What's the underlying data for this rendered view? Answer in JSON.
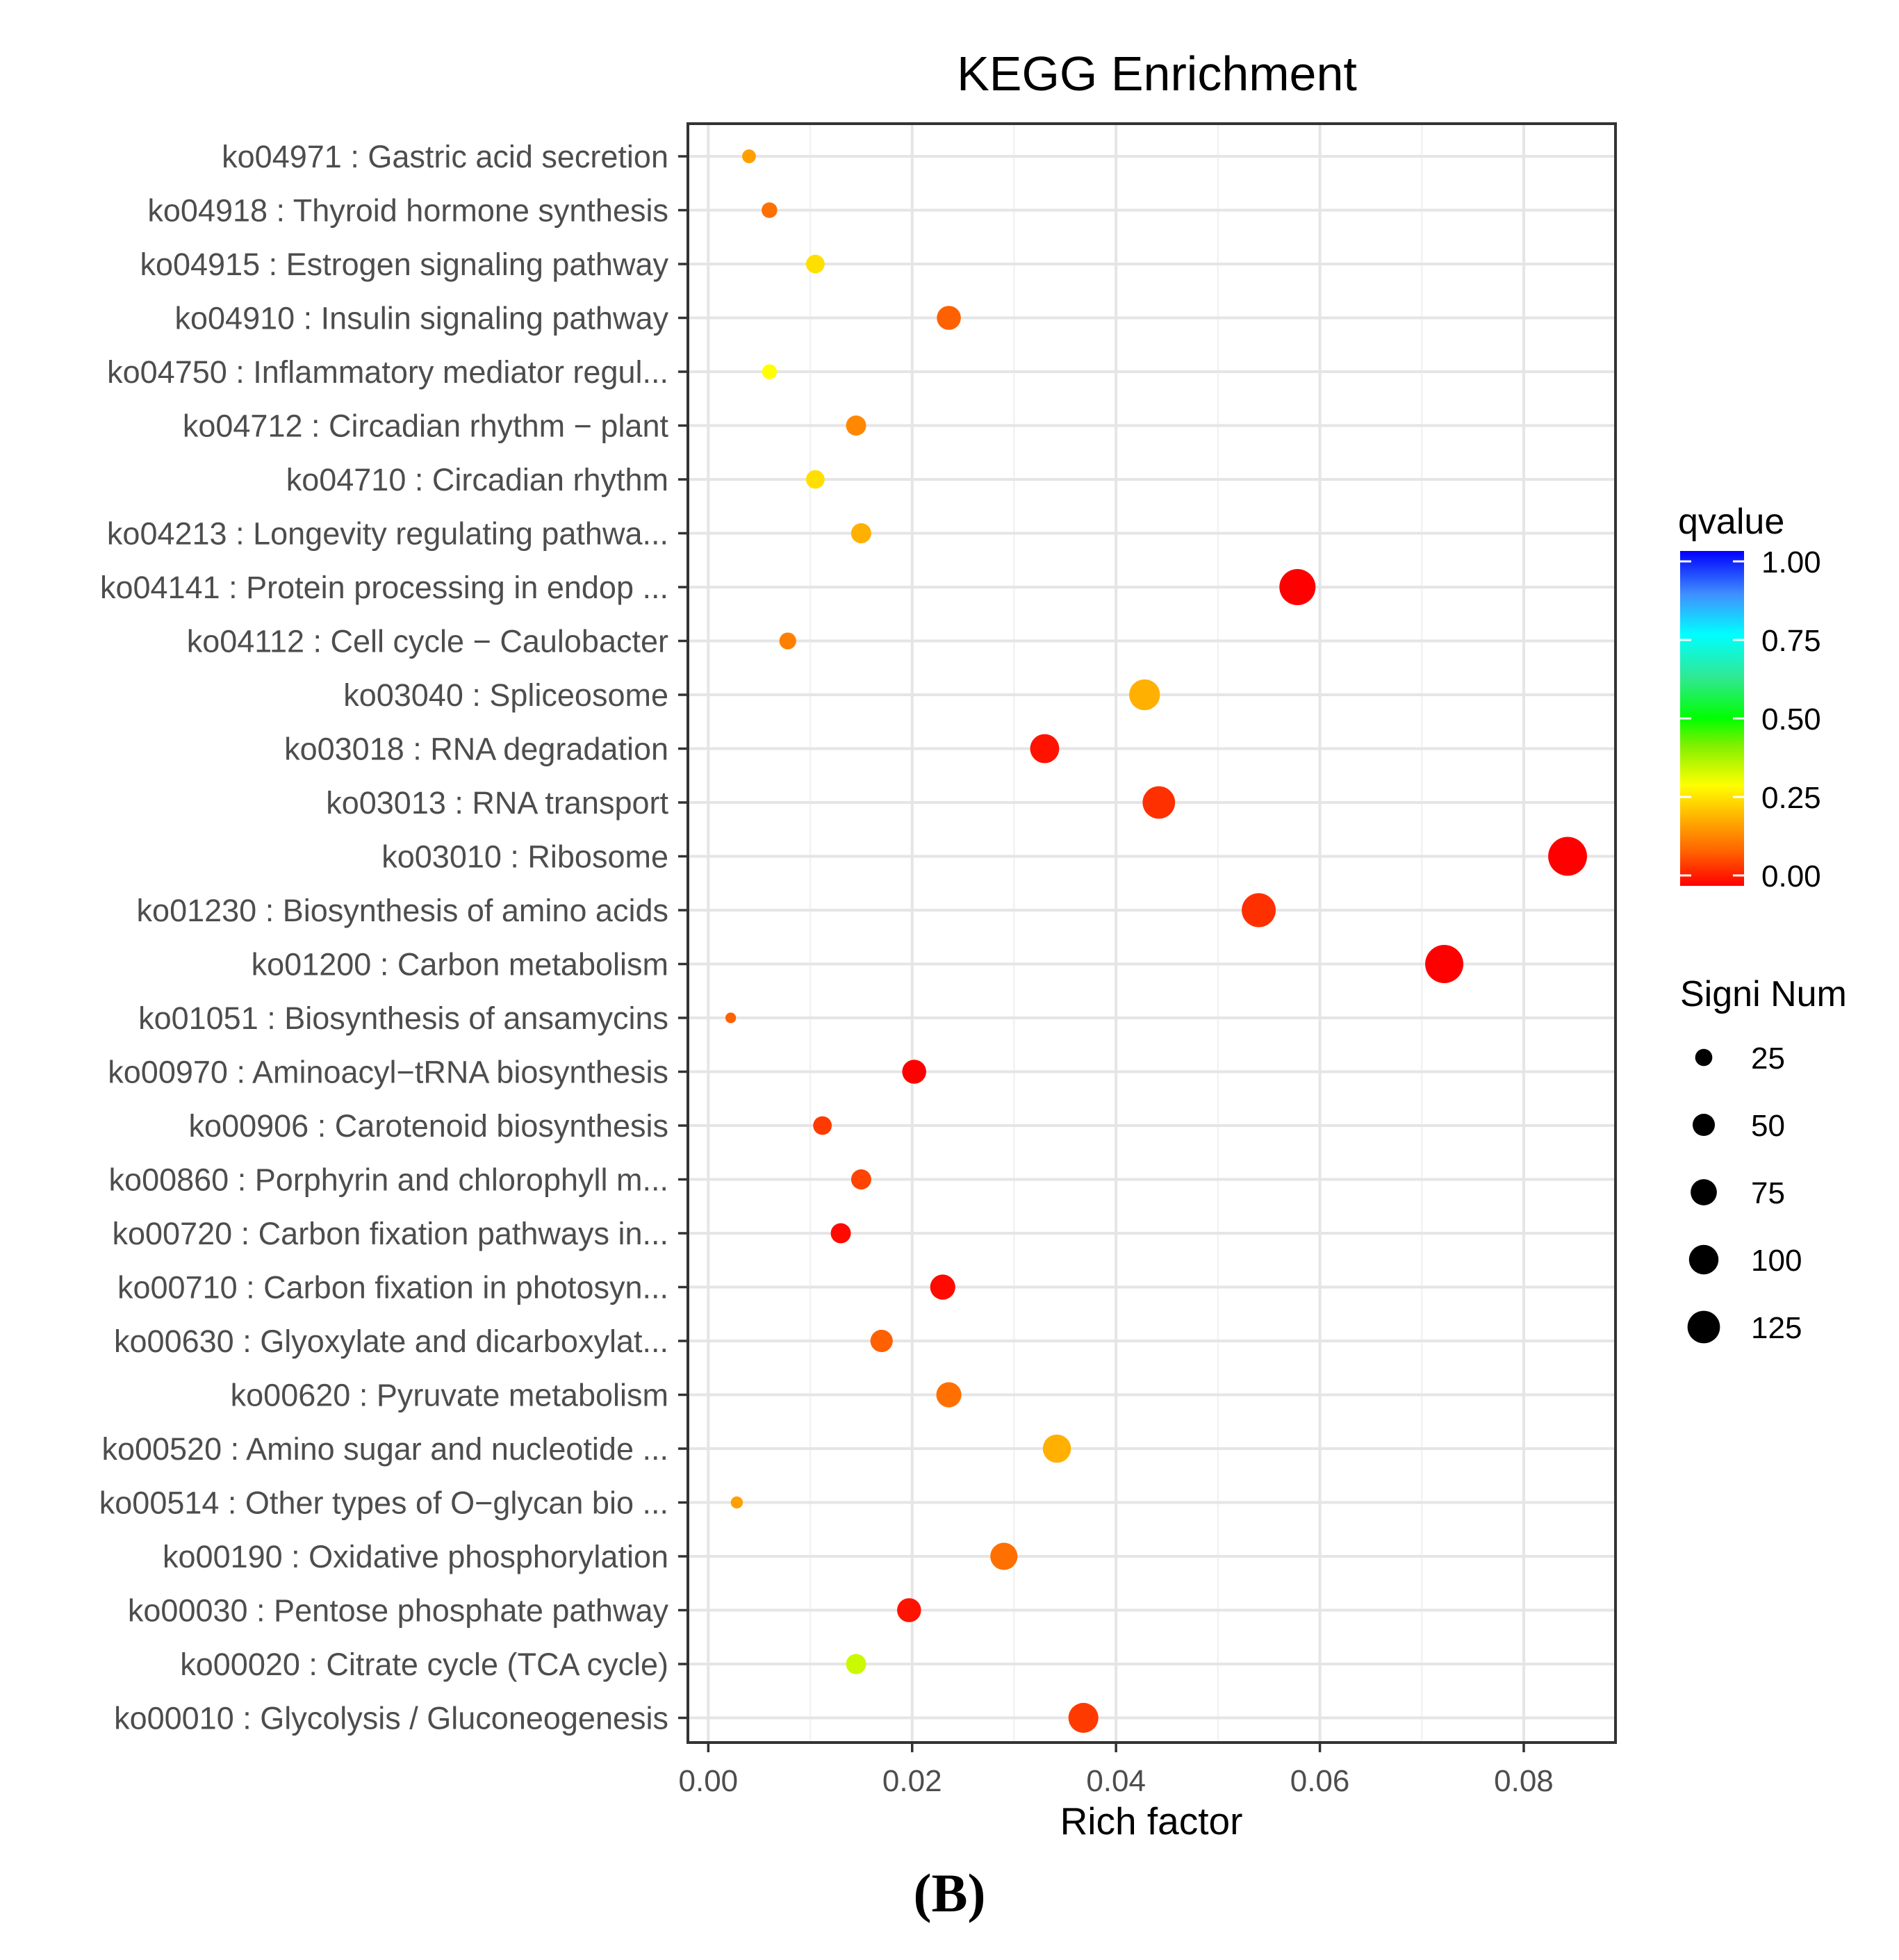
{
  "chart_data": {
    "type": "scatter",
    "title": "KEGG Enrichment",
    "xlabel": "Rich factor",
    "ylabel": "",
    "xlim": [
      -0.002,
      0.089
    ],
    "xticks": [
      0.0,
      0.02,
      0.04,
      0.06,
      0.08
    ],
    "xtick_labels": [
      "0.00",
      "0.02",
      "0.04",
      "0.06",
      "0.08"
    ],
    "grid": true,
    "color_scale": {
      "title": "qvalue",
      "ticks": [
        1.0,
        0.75,
        0.5,
        0.25,
        0.0
      ],
      "tick_labels": [
        "1.00",
        "0.75",
        "0.50",
        "0.25",
        "0.00"
      ]
    },
    "size_legend": {
      "title": "Signi Num",
      "values": [
        25,
        50,
        75,
        100,
        125
      ],
      "labels": [
        "25",
        "50",
        "75",
        "100",
        "125"
      ]
    },
    "legend_position": "right",
    "categories": [
      "ko04971 : Gastric acid secretion",
      "ko04918 : Thyroid hormone synthesis",
      "ko04915 : Estrogen signaling pathway",
      "ko04910 : Insulin signaling pathway",
      "ko04750 : Inflammatory mediator regul...",
      "ko04712 : Circadian rhythm − plant",
      "ko04710 : Circadian rhythm",
      "ko04213 : Longevity regulating pathwa...",
      "ko04141 : Protein processing in endop ...",
      "ko04112 : Cell cycle − Caulobacter",
      "ko03040 : Spliceosome",
      "ko03018 : RNA degradation",
      "ko03013 : RNA transport",
      "ko03010 : Ribosome",
      "ko01230 : Biosynthesis of amino acids",
      "ko01200 : Carbon metabolism",
      "ko01051 : Biosynthesis of ansamycins",
      "ko00970 : Aminoacyl−tRNA biosynthesis",
      "ko00906 : Carotenoid biosynthesis",
      "ko00860 : Porphyrin and chlorophyll m...",
      "ko00720 : Carbon fixation pathways in...",
      "ko00710 : Carbon fixation in photosyn...",
      "ko00630 : Glyoxylate and dicarboxylat...",
      "ko00620 : Pyruvate metabolism",
      "ko00520 : Amino sugar and nucleotide ...",
      "ko00514 : Other types of O−glycan bio ...",
      "ko00190 : Oxidative phosphorylation",
      "ko00030 : Pentose phosphate pathway",
      "ko00020 : Citrate cycle (TCA cycle)",
      "ko00010 : Glycolysis / Gluconeogenesis"
    ],
    "points": [
      {
        "rich_factor": 0.004,
        "qvalue": 0.18,
        "signi_num": 8
      },
      {
        "rich_factor": 0.006,
        "qvalue": 0.12,
        "signi_num": 12
      },
      {
        "rich_factor": 0.0105,
        "qvalue": 0.26,
        "signi_num": 20
      },
      {
        "rich_factor": 0.0236,
        "qvalue": 0.1,
        "signi_num": 40
      },
      {
        "rich_factor": 0.006,
        "qvalue": 0.3,
        "signi_num": 10
      },
      {
        "rich_factor": 0.0145,
        "qvalue": 0.15,
        "signi_num": 25
      },
      {
        "rich_factor": 0.0105,
        "qvalue": 0.26,
        "signi_num": 20
      },
      {
        "rich_factor": 0.015,
        "qvalue": 0.2,
        "signi_num": 25
      },
      {
        "rich_factor": 0.0578,
        "qvalue": 0.0,
        "signi_num": 110
      },
      {
        "rich_factor": 0.0078,
        "qvalue": 0.14,
        "signi_num": 15
      },
      {
        "rich_factor": 0.0428,
        "qvalue": 0.2,
        "signi_num": 75
      },
      {
        "rich_factor": 0.033,
        "qvalue": 0.02,
        "signi_num": 65
      },
      {
        "rich_factor": 0.0442,
        "qvalue": 0.05,
        "signi_num": 85
      },
      {
        "rich_factor": 0.0843,
        "qvalue": 0.0,
        "signi_num": 130
      },
      {
        "rich_factor": 0.054,
        "qvalue": 0.05,
        "signi_num": 95
      },
      {
        "rich_factor": 0.0722,
        "qvalue": 0.0,
        "signi_num": 125
      },
      {
        "rich_factor": 0.0022,
        "qvalue": 0.1,
        "signi_num": 3
      },
      {
        "rich_factor": 0.0202,
        "qvalue": 0.0,
        "signi_num": 40
      },
      {
        "rich_factor": 0.0112,
        "qvalue": 0.06,
        "signi_num": 20
      },
      {
        "rich_factor": 0.015,
        "qvalue": 0.07,
        "signi_num": 25
      },
      {
        "rich_factor": 0.013,
        "qvalue": 0.01,
        "signi_num": 25
      },
      {
        "rich_factor": 0.023,
        "qvalue": 0.01,
        "signi_num": 45
      },
      {
        "rich_factor": 0.017,
        "qvalue": 0.1,
        "signi_num": 33
      },
      {
        "rich_factor": 0.0236,
        "qvalue": 0.12,
        "signi_num": 45
      },
      {
        "rich_factor": 0.0342,
        "qvalue": 0.2,
        "signi_num": 60
      },
      {
        "rich_factor": 0.0028,
        "qvalue": 0.18,
        "signi_num": 5
      },
      {
        "rich_factor": 0.029,
        "qvalue": 0.12,
        "signi_num": 55
      },
      {
        "rich_factor": 0.0197,
        "qvalue": 0.02,
        "signi_num": 40
      },
      {
        "rich_factor": 0.0145,
        "qvalue": 0.35,
        "signi_num": 25
      },
      {
        "rich_factor": 0.0368,
        "qvalue": 0.06,
        "signi_num": 70
      }
    ]
  },
  "panel_label": "(B)"
}
